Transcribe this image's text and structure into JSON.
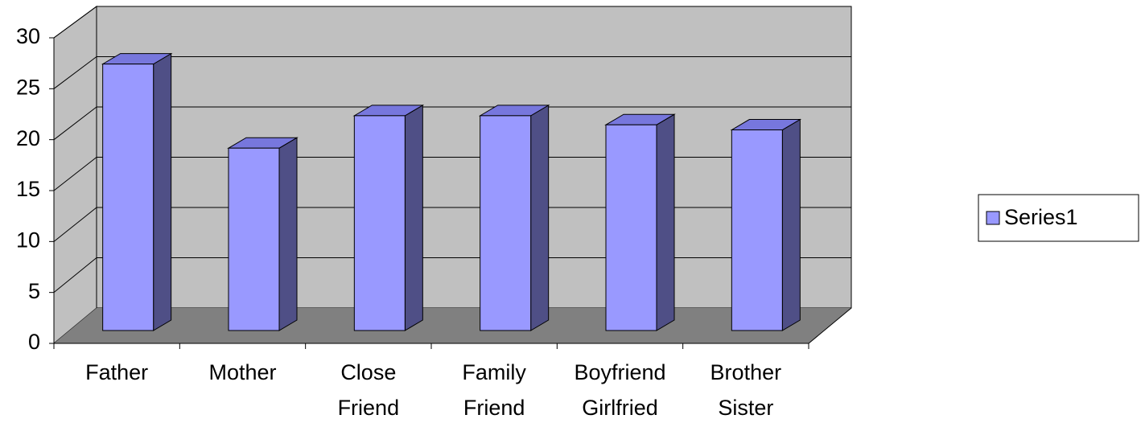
{
  "chart_data": {
    "type": "bar3d",
    "categories": [
      "Father",
      "Mother",
      "Close Friend",
      "Family Friend",
      "Boyfriend Girlfried",
      "Brother Sister"
    ],
    "series": [
      {
        "name": "Series1",
        "color": "#9999ff",
        "values": [
          26.3,
          18,
          21.2,
          21.2,
          20.3,
          19.8
        ]
      }
    ],
    "ylim": [
      0,
      30
    ],
    "yticks": [
      0,
      5,
      10,
      15,
      20,
      25,
      30
    ],
    "grid": true,
    "legend": "right"
  }
}
